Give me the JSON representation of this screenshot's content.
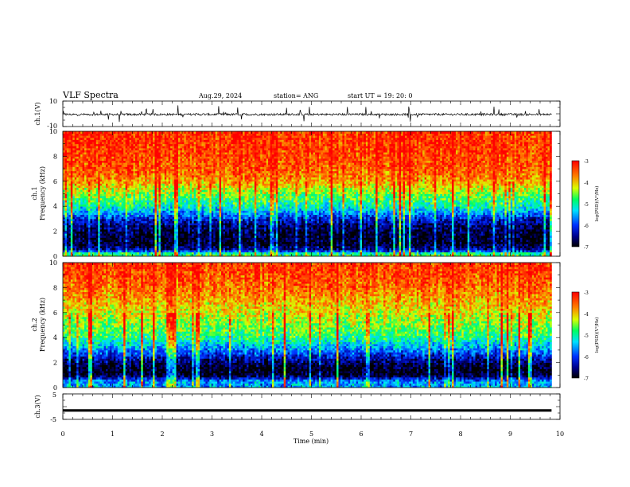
{
  "header": {
    "title": "VLF Spectra",
    "date": "Aug.29, 2024",
    "station": "station= ANG",
    "start": "start  UT =   19: 20: 0"
  },
  "chart_data": [
    {
      "type": "line",
      "ylabel": "ch.1(V)",
      "ylim": [
        -10,
        10
      ],
      "y_ticks": [
        "10",
        "-10"
      ],
      "xlim": [
        0,
        9.83
      ],
      "baseline": -0.5,
      "color": "#000000"
    },
    {
      "type": "heatmap",
      "ylabel_line1": "ch.1",
      "ylabel_line2": "Frequency  (kHz)",
      "ylim": [
        0,
        10
      ],
      "y_ticks": [
        "0",
        "2",
        "4",
        "6",
        "8",
        "10"
      ],
      "xlim": [
        0,
        9.83
      ],
      "profile": [
        {
          "f": 0.2,
          "v": -4.8
        },
        {
          "f": 0.5,
          "v": -6.4
        },
        {
          "f": 1.0,
          "v": -6.9
        },
        {
          "f": 1.5,
          "v": -6.9
        },
        {
          "f": 2.0,
          "v": -6.8
        },
        {
          "f": 2.5,
          "v": -6.6
        },
        {
          "f": 3.0,
          "v": -6.2
        },
        {
          "f": 3.5,
          "v": -5.6
        },
        {
          "f": 4.0,
          "v": -5.1
        },
        {
          "f": 4.5,
          "v": -4.8
        },
        {
          "f": 5.0,
          "v": -4.5
        },
        {
          "f": 5.5,
          "v": -4.2
        },
        {
          "f": 6.0,
          "v": -3.8
        },
        {
          "f": 7.0,
          "v": -3.5
        },
        {
          "f": 8.0,
          "v": -3.4
        },
        {
          "f": 9.0,
          "v": -3.3
        },
        {
          "f": 10.0,
          "v": -3.3
        }
      ],
      "colorbar": {
        "label": "log(PSD)(V²/Hz)",
        "min": -7,
        "max": -3,
        "ticks": [
          "-3",
          "-4",
          "-5",
          "-6",
          "-7"
        ]
      }
    },
    {
      "type": "heatmap",
      "ylabel_line1": "ch.2",
      "ylabel_line2": "Frequency  (kHz)",
      "ylim": [
        0,
        10
      ],
      "y_ticks": [
        "0",
        "2",
        "4",
        "6",
        "8",
        "10"
      ],
      "xlim": [
        0,
        9.83
      ],
      "profile": [
        {
          "f": 0.2,
          "v": -5.5
        },
        {
          "f": 0.5,
          "v": -5.6
        },
        {
          "f": 1.0,
          "v": -6.9
        },
        {
          "f": 1.5,
          "v": -7.0
        },
        {
          "f": 2.0,
          "v": -6.7
        },
        {
          "f": 2.5,
          "v": -6.2
        },
        {
          "f": 3.0,
          "v": -5.7
        },
        {
          "f": 3.5,
          "v": -5.3
        },
        {
          "f": 4.0,
          "v": -4.9
        },
        {
          "f": 5.0,
          "v": -4.5
        },
        {
          "f": 6.0,
          "v": -4.2
        },
        {
          "f": 7.0,
          "v": -3.9
        },
        {
          "f": 8.0,
          "v": -3.6
        },
        {
          "f": 9.0,
          "v": -3.4
        },
        {
          "f": 10.0,
          "v": -3.3
        }
      ],
      "colorbar": {
        "label": "log(PSD)(V²/Hz)",
        "min": -7,
        "max": -3,
        "ticks": [
          "-3",
          "-4",
          "-5",
          "-6",
          "-7"
        ]
      }
    },
    {
      "type": "line",
      "ylabel": "ch.3(V)",
      "ylim": [
        -5,
        5
      ],
      "y_ticks": [
        "5",
        "-5"
      ],
      "xlim": [
        0,
        9.83
      ],
      "baseline": -1.5,
      "color": "#000000"
    }
  ],
  "xaxis": {
    "label": "Time  (min)",
    "range": [
      0,
      10
    ],
    "ticks": [
      "0",
      "1",
      "2",
      "3",
      "4",
      "5",
      "6",
      "7",
      "8",
      "9",
      "10"
    ]
  }
}
